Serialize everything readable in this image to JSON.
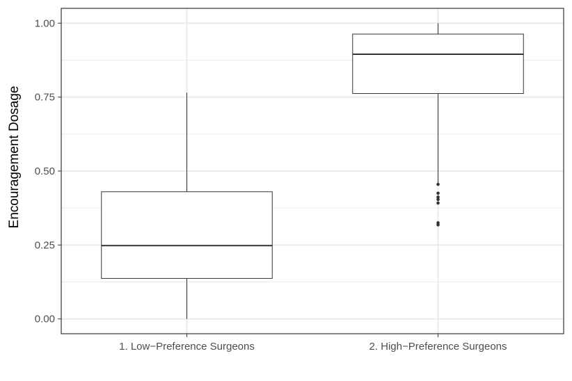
{
  "chart_data": {
    "type": "boxplot",
    "title": "",
    "xlabel": "",
    "ylabel": "Encouragement Dosage",
    "ylim": [
      -0.05,
      1.05
    ],
    "yticks": [
      {
        "value": 0.0,
        "label": "0.00"
      },
      {
        "value": 0.25,
        "label": "0.25"
      },
      {
        "value": 0.5,
        "label": "0.50"
      },
      {
        "value": 0.75,
        "label": "0.75"
      },
      {
        "value": 1.0,
        "label": "1.00"
      }
    ],
    "grid": true,
    "legend": "none",
    "categories": [
      "1. Low−Preference Surgeons",
      "2. High−Preference Surgeons"
    ],
    "boxes": [
      {
        "category": "1. Low−Preference Surgeons",
        "min": 0.0,
        "q1": 0.137,
        "median": 0.248,
        "q3": 0.43,
        "max": 0.765,
        "outliers": []
      },
      {
        "category": "2. High−Preference Surgeons",
        "min": 0.455,
        "q1": 0.762,
        "median": 0.895,
        "q3": 0.963,
        "max": 1.0,
        "outliers": [
          0.455,
          0.425,
          0.412,
          0.404,
          0.392,
          0.325,
          0.318
        ]
      }
    ],
    "colors": {
      "box_fill": "#ffffff",
      "box_line": "#333333",
      "grid": "#ebebeb",
      "panel_border": "#333333",
      "tick_text": "#4d4d4d"
    }
  }
}
